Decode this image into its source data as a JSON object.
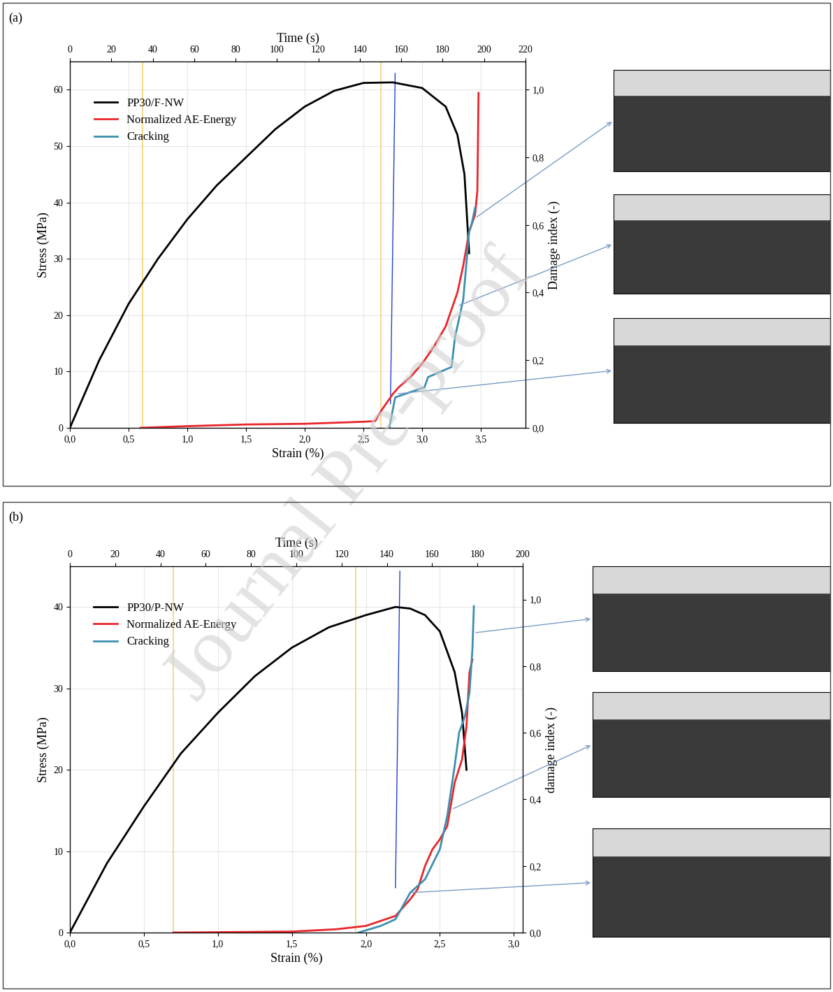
{
  "watermark": "Journal Pre-proof",
  "chart_data": [
    {
      "type": "line",
      "panel_label": "(a)",
      "xlabel": "Strain (%)",
      "ylabel": "Stress (MPa)",
      "y2label": "Damage index (-)",
      "x2label": "Time (s)",
      "xlim": [
        0,
        3.88
      ],
      "ylim": [
        0,
        65
      ],
      "y2lim": [
        0,
        1.083
      ],
      "x2lim": [
        0,
        220
      ],
      "xticks": [
        {
          "value": 0,
          "label": "0,0"
        },
        {
          "value": 0.5,
          "label": "0,5"
        },
        {
          "value": 1.0,
          "label": "1,0"
        },
        {
          "value": 1.5,
          "label": "1,5"
        },
        {
          "value": 2.0,
          "label": "2,0"
        },
        {
          "value": 2.5,
          "label": "2,5"
        },
        {
          "value": 3.0,
          "label": "3,0"
        },
        {
          "value": 3.5,
          "label": "3,5"
        }
      ],
      "yticks": [
        0,
        10,
        20,
        30,
        40,
        50,
        60
      ],
      "y2ticks": [
        {
          "value": 0,
          "label": "0,0"
        },
        {
          "value": 0.2,
          "label": "0,2"
        },
        {
          "value": 0.4,
          "label": "0,4"
        },
        {
          "value": 0.6,
          "label": "0,6"
        },
        {
          "value": 0.8,
          "label": "0,8"
        },
        {
          "value": 1.0,
          "label": "1,0"
        }
      ],
      "x2ticks": [
        0,
        20,
        40,
        60,
        80,
        100,
        120,
        140,
        160,
        180,
        200,
        220
      ],
      "grid": true,
      "legend": "upper left",
      "series": [
        {
          "name": "PP30/F-NW",
          "color": "#000000",
          "axis": "y",
          "x": [
            0,
            0.25,
            0.5,
            0.75,
            1.0,
            1.25,
            1.5,
            1.75,
            2.0,
            2.25,
            2.5,
            2.75,
            3.0,
            3.2,
            3.3,
            3.36,
            3.38,
            3.4
          ],
          "values": [
            0,
            12,
            22,
            30,
            37,
            43,
            48,
            53,
            57,
            59.8,
            61.2,
            61.3,
            60.3,
            57,
            52,
            45,
            38,
            31
          ]
        },
        {
          "name": "Normalized AE-Energy",
          "color": "#e8262b",
          "axis": "y2",
          "x": [
            0.6,
            1.0,
            1.5,
            2.0,
            2.5,
            2.6,
            2.65,
            2.75,
            2.8,
            2.9,
            3.0,
            3.1,
            3.2,
            3.3,
            3.35,
            3.4,
            3.45,
            3.47,
            3.48
          ],
          "values": [
            0,
            0.005,
            0.01,
            0.012,
            0.018,
            0.02,
            0.05,
            0.1,
            0.12,
            0.15,
            0.19,
            0.24,
            0.3,
            0.4,
            0.48,
            0.58,
            0.63,
            0.7,
            0.99
          ]
        },
        {
          "name": "Cracking",
          "color": "#3d8fb0",
          "axis": "y2",
          "x": [
            2.72,
            2.77,
            3.02,
            3.05,
            3.25,
            3.28,
            3.3,
            3.35,
            3.38,
            3.4,
            3.42,
            3.45
          ],
          "values": [
            0,
            0.09,
            0.12,
            0.15,
            0.18,
            0.27,
            0.3,
            0.38,
            0.5,
            0.58,
            0.6,
            0.65
          ]
        }
      ],
      "vlines": [
        0.62,
        2.65
      ],
      "guide_line": {
        "x": [
          2.73,
          2.77
        ],
        "y": [
          4.3,
          62.9
        ]
      },
      "photo_points": [
        [
          3.45,
          0.62
        ],
        [
          3.3,
          0.36
        ],
        [
          2.78,
          0.1
        ]
      ]
    },
    {
      "type": "line",
      "panel_label": "(b)",
      "xlabel": "Strain (%)",
      "ylabel": "Stress (MPa)",
      "y2label": "damage index (-)",
      "x2label": "Time (s)",
      "xlim": [
        0,
        3.06
      ],
      "ylim": [
        0,
        45
      ],
      "y2lim": [
        0,
        1.1
      ],
      "x2lim": [
        0,
        200
      ],
      "xticks": [
        {
          "value": 0,
          "label": "0,0"
        },
        {
          "value": 0.5,
          "label": "0,5"
        },
        {
          "value": 1.0,
          "label": "1,0"
        },
        {
          "value": 1.5,
          "label": "1,5"
        },
        {
          "value": 2.0,
          "label": "2,0"
        },
        {
          "value": 2.5,
          "label": "2,5"
        },
        {
          "value": 3.0,
          "label": "3,0"
        }
      ],
      "yticks": [
        0,
        10,
        20,
        30,
        40
      ],
      "y2ticks": [
        {
          "value": 0,
          "label": "0,0"
        },
        {
          "value": 0.2,
          "label": "0,2"
        },
        {
          "value": 0.4,
          "label": "0,4"
        },
        {
          "value": 0.6,
          "label": "0,6"
        },
        {
          "value": 0.8,
          "label": "0,8"
        },
        {
          "value": 1.0,
          "label": "1,0"
        }
      ],
      "x2ticks": [
        0,
        20,
        40,
        60,
        80,
        100,
        120,
        140,
        160,
        180,
        200
      ],
      "grid": true,
      "legend": "upper left",
      "series": [
        {
          "name": "PP30/P-NW",
          "color": "#000000",
          "axis": "y",
          "x": [
            0,
            0.25,
            0.5,
            0.75,
            1.0,
            1.25,
            1.5,
            1.75,
            2.0,
            2.2,
            2.3,
            2.4,
            2.5,
            2.6,
            2.65,
            2.68
          ],
          "values": [
            0,
            8.5,
            15.5,
            22,
            27,
            31.5,
            35,
            37.5,
            39,
            40,
            39.8,
            39,
            37,
            32,
            27,
            20
          ]
        },
        {
          "name": "Normalized AE-Energy",
          "color": "#e8262b",
          "axis": "y2",
          "x": [
            0.7,
            1.5,
            1.8,
            2.0,
            2.2,
            2.3,
            2.35,
            2.4,
            2.45,
            2.5,
            2.55,
            2.6,
            2.65,
            2.68,
            2.7,
            2.72
          ],
          "values": [
            0,
            0.003,
            0.01,
            0.02,
            0.05,
            0.1,
            0.13,
            0.2,
            0.25,
            0.28,
            0.32,
            0.45,
            0.52,
            0.62,
            0.78,
            0.82
          ]
        },
        {
          "name": "Cracking",
          "color": "#3d8fb0",
          "axis": "y2",
          "x": [
            1.95,
            2.1,
            2.2,
            2.25,
            2.3,
            2.4,
            2.5,
            2.55,
            2.6,
            2.63,
            2.67,
            2.7,
            2.72,
            2.73
          ],
          "values": [
            0,
            0.02,
            0.04,
            0.08,
            0.12,
            0.16,
            0.25,
            0.35,
            0.5,
            0.6,
            0.65,
            0.72,
            0.85,
            0.98
          ]
        }
      ],
      "vlines": [
        0.7,
        1.93
      ],
      "guide_line": {
        "x": [
          2.2,
          2.23
        ],
        "y": [
          5.5,
          44.4
        ]
      },
      "photo_points": [
        [
          2.73,
          0.9
        ],
        [
          2.58,
          0.37
        ],
        [
          2.3,
          0.12
        ]
      ]
    }
  ]
}
